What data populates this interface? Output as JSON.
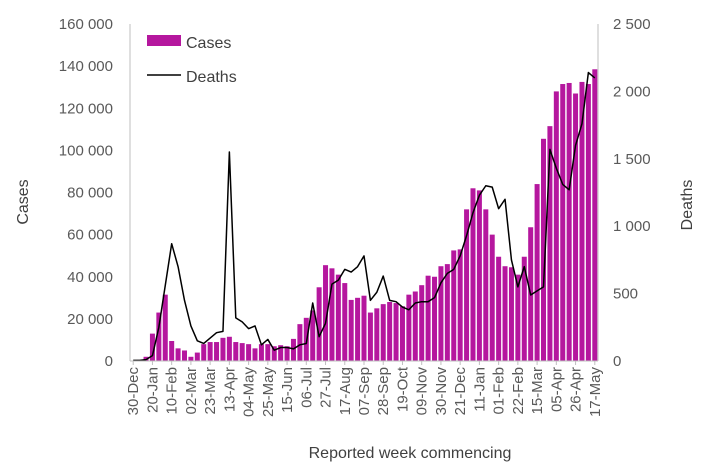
{
  "chart_data": {
    "type": "bar+line",
    "title": "",
    "xlabel": "Reported week commencing",
    "ylabel_left": "Cases",
    "ylabel_right": "Deaths",
    "ylim_left": [
      0,
      160000
    ],
    "ylim_right": [
      0,
      2500
    ],
    "left_ticks": [
      "0",
      "20 000",
      "40 000",
      "60 000",
      "80 000",
      "100 000",
      "120 000",
      "140 000",
      "160 000"
    ],
    "right_ticks": [
      "0",
      "500",
      "1 000",
      "1 500",
      "2 000",
      "2 500"
    ],
    "tick_labels": [
      "30-Dec",
      "20-Jan",
      "10-Feb",
      "02-Mar",
      "23-Mar",
      "13-Apr",
      "04-May",
      "25-May",
      "15-Jun",
      "06-Jul",
      "27-Jul",
      "17-Aug",
      "07-Sep",
      "28-Sep",
      "19-Oct",
      "09-Nov",
      "30-Nov",
      "21-Dec",
      "11-Jan",
      "01-Feb",
      "22-Feb",
      "15-Mar",
      "05-Apr",
      "26-Apr",
      "17-May"
    ],
    "tick_every": 3,
    "legend_position": "top-left",
    "colors": {
      "cases": "#b5179e",
      "deaths": "#000000",
      "axis": "#bfbfbf"
    },
    "series": [
      {
        "name": "Cases",
        "kind": "bar",
        "axis": "left",
        "values": [
          200,
          500,
          2000,
          13000,
          23000,
          31500,
          9500,
          6000,
          5000,
          2000,
          4000,
          8000,
          9000,
          9000,
          11000,
          11500,
          9000,
          8500,
          8000,
          6000,
          8000,
          8000,
          7000,
          7500,
          7000,
          10500,
          17500,
          20500,
          24000,
          35000,
          45500,
          44000,
          41000,
          37000,
          29000,
          30000,
          31000,
          23000,
          25000,
          27000,
          28000,
          27500,
          26000,
          31500,
          33000,
          36000,
          40500,
          40000,
          45000,
          46000,
          52500,
          53000,
          72000,
          82000,
          81000,
          72000,
          60000,
          49500,
          45000,
          44500,
          41000,
          49500,
          63500,
          84000,
          105500,
          111500,
          128000,
          131500,
          132000,
          127000,
          132500,
          131500,
          138500
        ]
      },
      {
        "name": "Deaths",
        "kind": "line",
        "axis": "right",
        "values": [
          5,
          5,
          10,
          40,
          250,
          560,
          870,
          700,
          450,
          260,
          150,
          130,
          170,
          210,
          220,
          1550,
          320,
          290,
          240,
          260,
          120,
          160,
          80,
          100,
          100,
          90,
          120,
          130,
          430,
          180,
          280,
          570,
          600,
          680,
          660,
          700,
          780,
          450,
          510,
          630,
          450,
          440,
          400,
          380,
          430,
          440,
          440,
          470,
          580,
          650,
          680,
          780,
          930,
          1100,
          1230,
          1300,
          1290,
          1130,
          1200,
          750,
          550,
          700,
          490,
          520,
          550,
          1570,
          1430,
          1310,
          1270,
          1600,
          1760,
          2140,
          2100
        ]
      }
    ]
  }
}
